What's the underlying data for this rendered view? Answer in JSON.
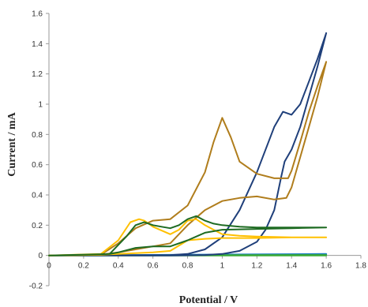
{
  "chart_data": {
    "type": "line",
    "title": "",
    "xlabel": "Potential / V",
    "ylabel": "Current / mA",
    "xlim": [
      0,
      1.8
    ],
    "ylim": [
      -0.2,
      1.6
    ],
    "xticks": [
      0,
      0.2,
      0.4,
      0.6,
      0.8,
      1,
      1.2,
      1.4,
      1.6,
      1.8
    ],
    "yticks": [
      -0.2,
      0,
      0.2,
      0.4,
      0.6,
      0.8,
      1,
      1.2,
      1.4,
      1.6
    ],
    "xtick_labels": [
      "0",
      "0.2",
      "0.4",
      "0.6",
      "0.8",
      "1",
      "1.2",
      "1.4",
      "1.6",
      "1.8"
    ],
    "ytick_labels": [
      "-0.2",
      "0",
      "0.2",
      "0.4",
      "0.6",
      "0.8",
      "1",
      "1.2",
      "1.4",
      "1.6"
    ],
    "grid": false,
    "legend": "none",
    "series": [
      {
        "color": "#1a7fc4",
        "x": [
          0.0,
          1.6,
          1.6,
          0.0
        ],
        "y": [
          0.0,
          0.005,
          0.01,
          0.0
        ]
      },
      {
        "color": "#3aaa35",
        "x": [
          0.0,
          1.6,
          1.6,
          0.0
        ],
        "y": [
          0.0,
          0.0,
          0.003,
          0.0
        ]
      },
      {
        "color": "#1f3f7a",
        "x": [
          0.0,
          0.7,
          0.8,
          0.9,
          1.0,
          1.1,
          1.2,
          1.3,
          1.35,
          1.4,
          1.45,
          1.5,
          1.55,
          1.6,
          1.6,
          1.55,
          1.5,
          1.45,
          1.4,
          1.36,
          1.34,
          1.3,
          1.25,
          1.2,
          1.1,
          1.0,
          0.9,
          0.8,
          0.7,
          0.0
        ],
        "y": [
          0.0,
          0.002,
          0.01,
          0.04,
          0.12,
          0.3,
          0.55,
          0.85,
          0.95,
          0.93,
          1.0,
          1.15,
          1.3,
          1.47,
          1.47,
          1.25,
          1.05,
          0.85,
          0.7,
          0.62,
          0.52,
          0.3,
          0.17,
          0.09,
          0.03,
          0.01,
          0.003,
          0.001,
          0.0,
          0.0
        ]
      },
      {
        "color": "#b07d1c",
        "x": [
          0.0,
          0.3,
          0.4,
          0.5,
          0.6,
          0.7,
          0.8,
          0.9,
          0.95,
          1.0,
          1.05,
          1.1,
          1.2,
          1.3,
          1.38,
          1.4,
          1.45,
          1.5,
          1.55,
          1.6,
          1.6,
          1.55,
          1.5,
          1.45,
          1.4,
          1.37,
          1.3,
          1.2,
          1.1,
          1.0,
          0.9,
          0.8,
          0.7,
          0.6,
          0.5,
          0.4,
          0.3,
          0.0
        ],
        "y": [
          0.0,
          0.005,
          0.08,
          0.18,
          0.23,
          0.24,
          0.33,
          0.55,
          0.75,
          0.91,
          0.78,
          0.62,
          0.54,
          0.51,
          0.51,
          0.56,
          0.75,
          0.95,
          1.12,
          1.28,
          1.28,
          1.05,
          0.85,
          0.65,
          0.45,
          0.38,
          0.37,
          0.39,
          0.38,
          0.36,
          0.3,
          0.2,
          0.08,
          0.06,
          0.04,
          0.02,
          0.005,
          0.0
        ]
      },
      {
        "color": "#ffc000",
        "x": [
          0.0,
          0.3,
          0.4,
          0.47,
          0.52,
          0.55,
          0.6,
          0.7,
          0.75,
          0.8,
          0.85,
          0.9,
          0.95,
          1.0,
          1.1,
          1.2,
          1.4,
          1.6,
          1.6,
          1.4,
          1.2,
          1.0,
          0.9,
          0.8,
          0.7,
          0.6,
          0.5,
          0.4,
          0.3,
          0.0
        ],
        "y": [
          0.0,
          0.01,
          0.1,
          0.22,
          0.24,
          0.23,
          0.19,
          0.14,
          0.17,
          0.23,
          0.24,
          0.2,
          0.17,
          0.14,
          0.13,
          0.125,
          0.12,
          0.12,
          0.12,
          0.12,
          0.115,
          0.115,
          0.11,
          0.1,
          0.03,
          0.02,
          0.015,
          0.01,
          0.005,
          0.0
        ]
      },
      {
        "color": "#1e6b22",
        "x": [
          0.0,
          0.35,
          0.45,
          0.5,
          0.55,
          0.6,
          0.65,
          0.7,
          0.75,
          0.8,
          0.85,
          0.9,
          0.95,
          1.0,
          1.1,
          1.2,
          1.4,
          1.6,
          1.6,
          1.4,
          1.2,
          1.0,
          0.9,
          0.8,
          0.7,
          0.6,
          0.5,
          0.4,
          0.35,
          0.0
        ],
        "y": [
          0.0,
          0.01,
          0.13,
          0.2,
          0.22,
          0.2,
          0.19,
          0.18,
          0.2,
          0.24,
          0.26,
          0.23,
          0.21,
          0.2,
          0.19,
          0.185,
          0.185,
          0.185,
          0.185,
          0.18,
          0.175,
          0.17,
          0.15,
          0.1,
          0.06,
          0.06,
          0.05,
          0.02,
          0.01,
          0.0
        ]
      }
    ]
  }
}
